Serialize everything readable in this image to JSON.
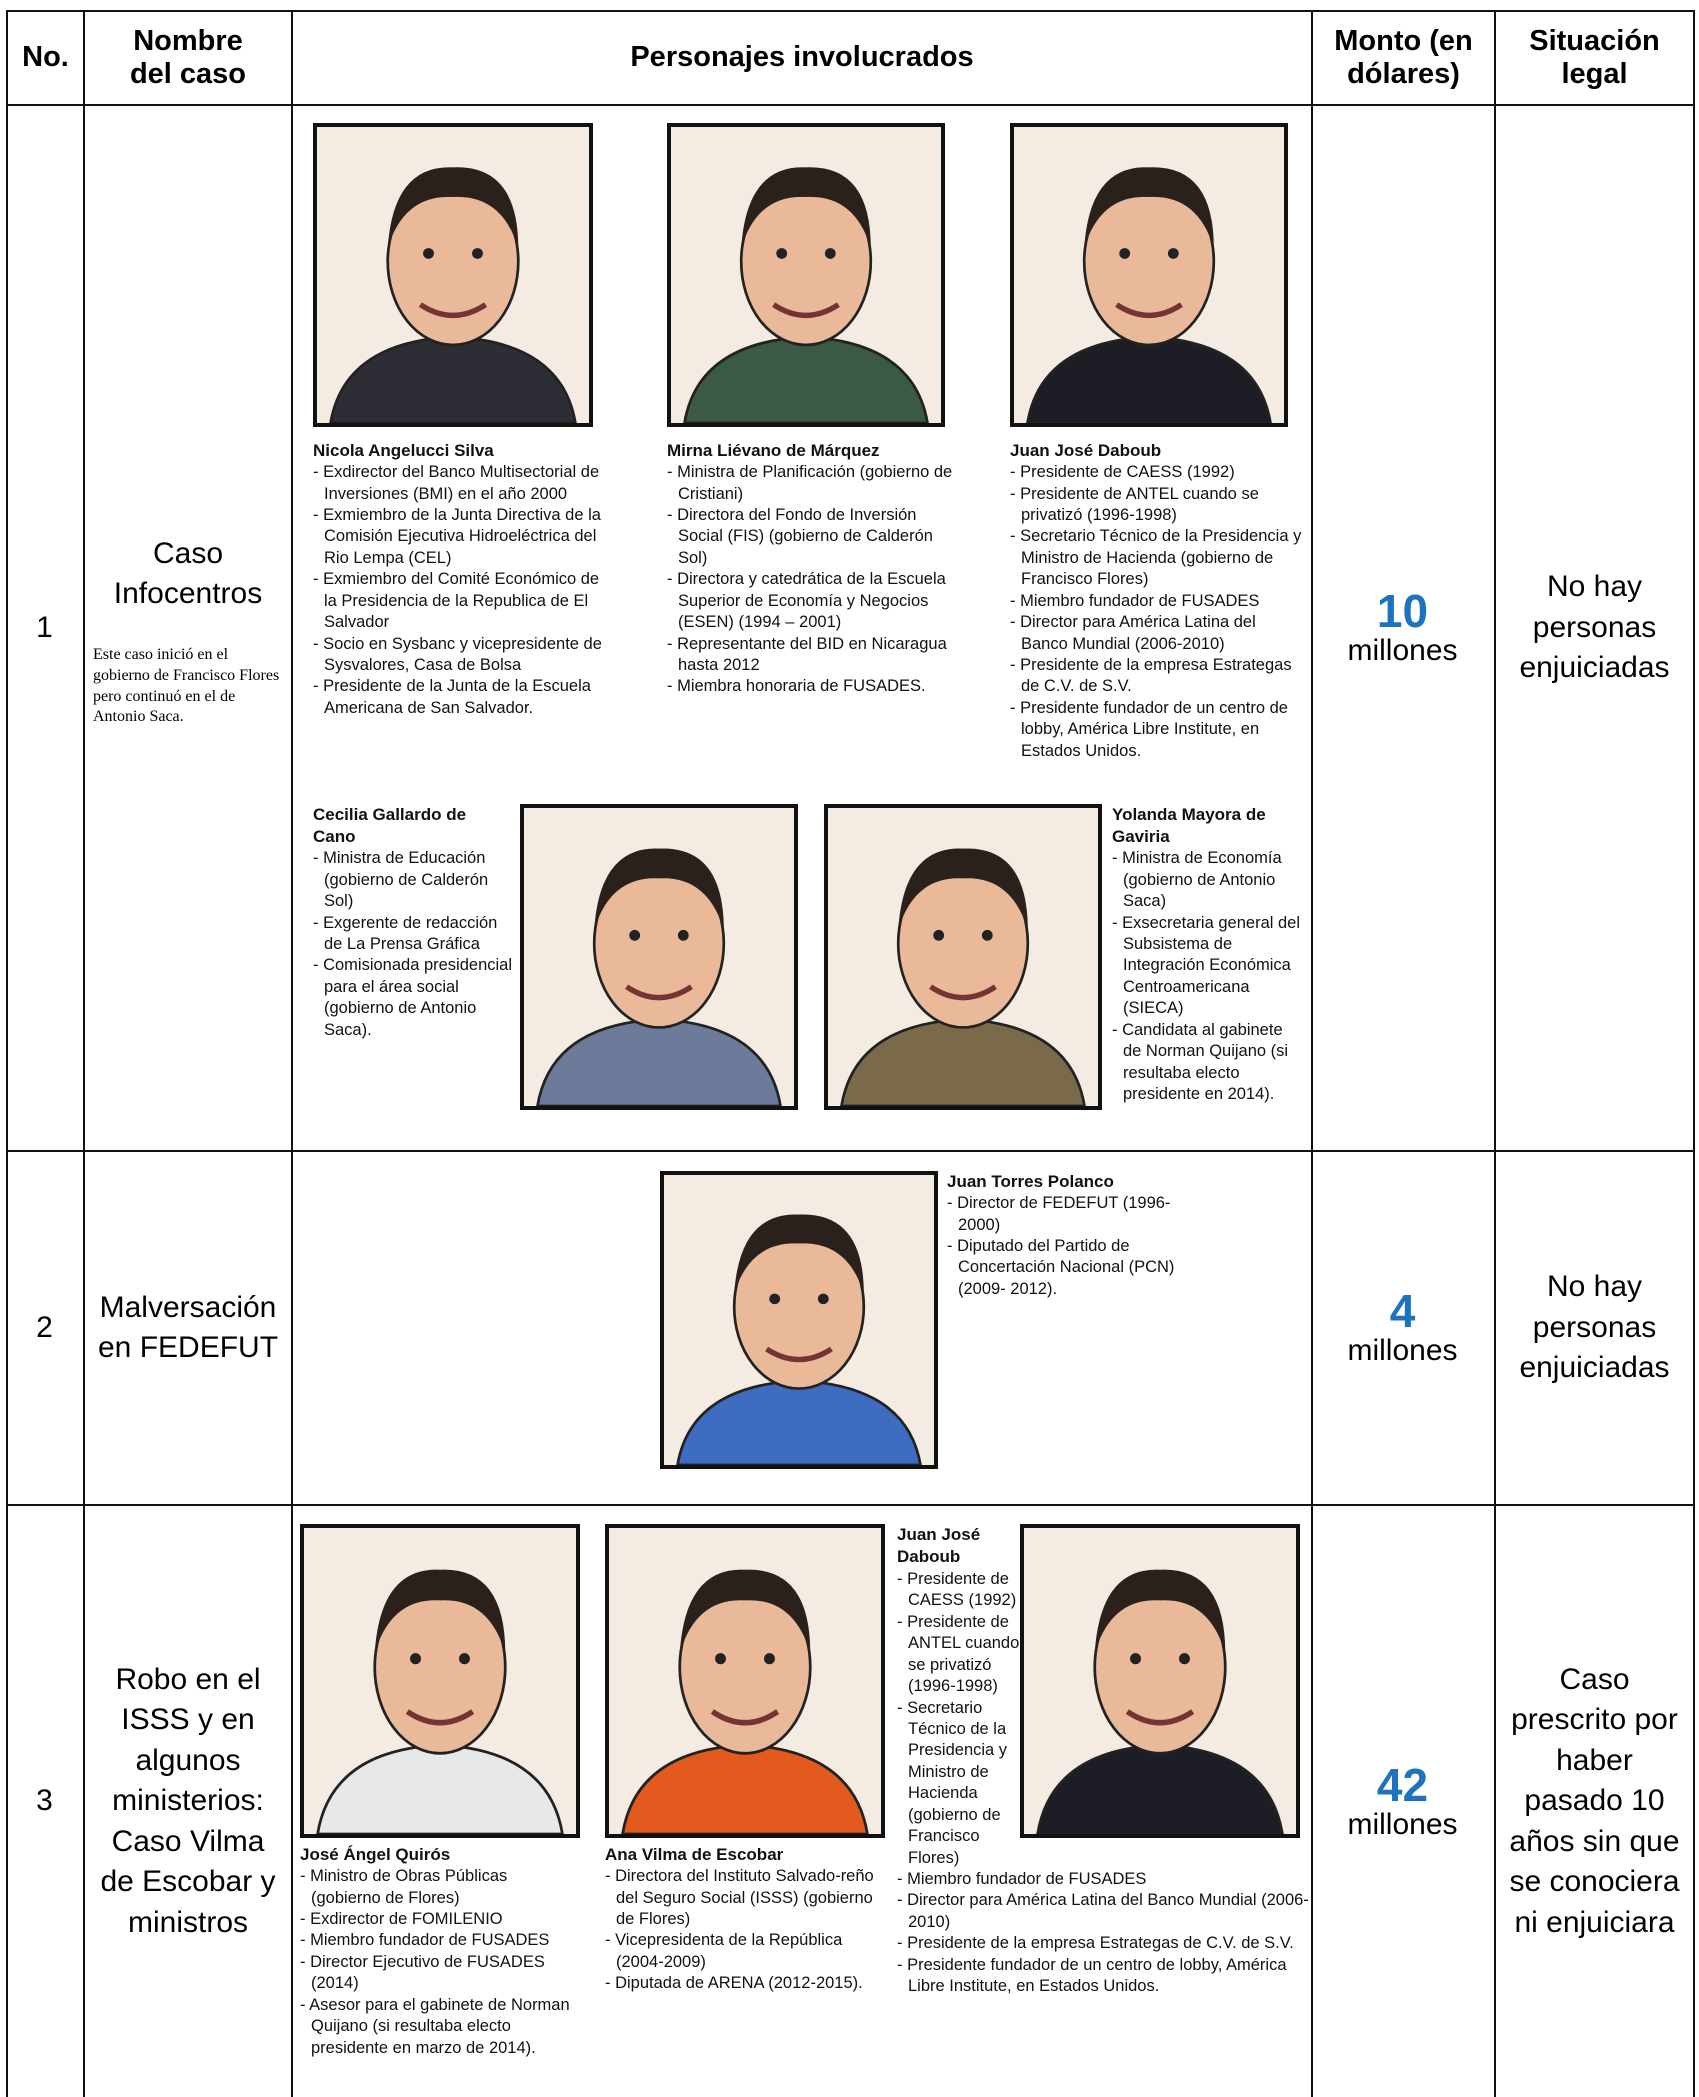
{
  "header": [
    "No.",
    "Nombre del caso",
    "Personajes involucrados",
    "Monto (en dólares)",
    "Situación legal"
  ],
  "rows": [
    {
      "no": "1",
      "case": "Caso Infocentros",
      "note": "Este caso inició en el gobierno de Francisco Flores pero continuó en el de Antonio Saca.",
      "amount": "10",
      "unit": "millones",
      "status": "No hay personas enjuiciadas",
      "people": [
        {
          "name": "Nicola Angelucci Silva",
          "items": [
            "- Exdirector del Banco Multisectorial de Inversiones (BMI) en el año 2000",
            "- Exmiembro de la Junta Directiva de la Comisión Ejecutiva Hidroeléctrica del Rio Lempa (CEL)",
            "- Exmiembro del Comité Económico de la Presidencia de la Republica de El Salvador",
            "- Socio en Sysbanc y vicepresidente de Sysvalores, Casa de Bolsa",
            "- Presidente de la Junta de la Escuela Americana de San Salvador."
          ]
        },
        {
          "name": "Mirna Liévano de Márquez",
          "items": [
            "- Ministra de Planificación (gobierno de Cristiani)",
            "- Directora del Fondo de Inversión Social (FIS) (gobierno de Calderón Sol)",
            "- Directora y catedrática de la Escuela Superior de Economía y Negocios (ESEN) (1994 – 2001)",
            "- Representante del BID en Nicaragua hasta 2012",
            "- Miembra honoraria de FUSADES."
          ]
        },
        {
          "name": "Juan José Daboub",
          "items": [
            "- Presidente de CAESS (1992)",
            "- Presidente de ANTEL cuando se privatizó (1996-1998)",
            "- Secretario Técnico de la Presidencia y Ministro de Hacienda (gobierno de Francisco Flores)",
            "- Miembro fundador de FUSADES",
            "- Director para América Latina del Banco Mundial (2006-2010)",
            "- Presidente de la empresa Estrategas de C.V. de S.V.",
            "- Presidente fundador de un centro de lobby, América Libre Institute, en Estados Unidos."
          ]
        },
        {
          "name": "Cecilia Gallardo de Cano",
          "items": [
            "- Ministra de Educación (gobierno de Calderón Sol)",
            "- Exgerente de redacción de La Prensa Gráfica",
            "- Comisionada presidencial para el área social (gobierno de Antonio Saca)."
          ]
        },
        {
          "name": "Yolanda Mayora de Gaviria",
          "items": [
            "- Ministra de Economía (gobierno de Antonio Saca)",
            "- Exsecretaria general del Subsistema de Integración Económica Centroamericana (SIECA)",
            "- Candidata al gabinete de Norman Quijano (si resultaba electo presidente en 2014)."
          ]
        }
      ]
    },
    {
      "no": "2",
      "case": "Malversación en FEDEFUT",
      "amount": "4",
      "unit": "millones",
      "status": "No hay personas enjuiciadas",
      "people": [
        {
          "name": "Juan Torres Polanco",
          "items": [
            "- Director de FEDEFUT (1996-2000)",
            "- Diputado del Partido de Concertación Nacional (PCN) (2009- 2012)."
          ]
        }
      ]
    },
    {
      "no": "3",
      "case": "Robo en el ISSS y en algunos ministerios: Caso Vilma de Escobar y ministros",
      "amount": "42",
      "unit": "millones",
      "status": "Caso prescrito por haber pasado 10 años sin que se conociera ni enjuiciara",
      "people": [
        {
          "name": "José Ángel Quirós",
          "items": [
            "- Ministro de Obras Públicas (gobierno de Flores)",
            "- Exdirector de FOMILENIO",
            "- Miembro fundador de FUSADES",
            "- Director Ejecutivo de FUSADES (2014)",
            "- Asesor para el gabinete de Norman Quijano (si resultaba electo presidente en marzo de 2014)."
          ]
        },
        {
          "name": "Ana Vilma de Escobar",
          "items": [
            "- Directora del Instituto Salvado-reño del Seguro Social (ISSS) (gobierno de Flores)",
            "- Vicepresidenta de la República (2004-2009)",
            "- Diputada de ARENA (2012-2015)."
          ]
        },
        {
          "name": "Juan José Daboub",
          "items": [
            "- Presidente de CAESS (1992)",
            "- Presidente de ANTEL cuando se privatizó (1996-1998)",
            "- Secretario Técnico de la Presidencia y Ministro de Hacienda (gobierno de Francisco Flores)",
            "- Miembro fundador de FUSADES",
            "- Director para América Latina del Banco Mundial (2006-2010)",
            "- Presidente de la empresa Estrategas de C.V. de S.V.",
            "- Presidente fundador de un centro de lobby, América Libre Institute, en Estados Unidos."
          ]
        }
      ]
    }
  ]
}
